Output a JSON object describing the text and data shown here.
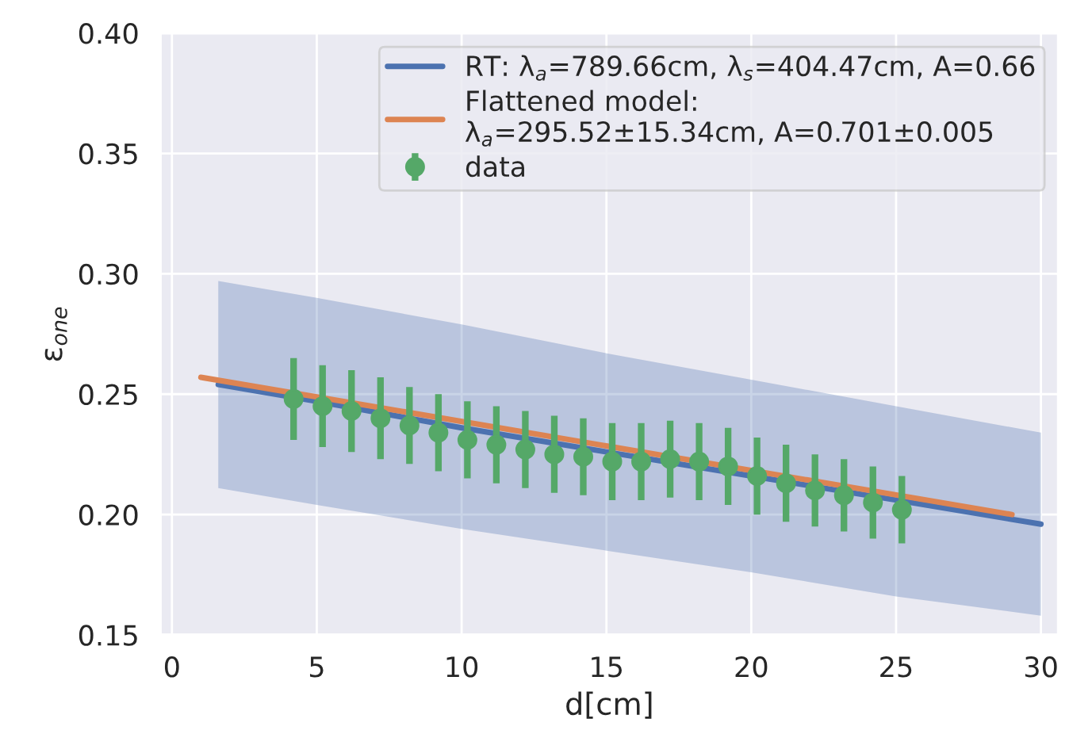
{
  "chart_data": {
    "type": "line",
    "xlabel": "d[cm]",
    "ylabel": "ε$_{one}$",
    "xlim": [
      -0.4,
      30.6
    ],
    "ylim": [
      0.15,
      0.4
    ],
    "xticks": [
      0,
      5,
      10,
      15,
      20,
      25,
      30
    ],
    "yticks": [
      {
        "value": 0.15,
        "label": "0.15"
      },
      {
        "value": 0.2,
        "label": "0.20"
      },
      {
        "value": 0.25,
        "label": "0.25"
      },
      {
        "value": 0.3,
        "label": "0.30"
      },
      {
        "value": 0.35,
        "label": "0.35"
      },
      {
        "value": 0.4,
        "label": "0.40"
      }
    ],
    "grid": true,
    "legend": "top right",
    "series": [
      {
        "name": "RT: λ$_{a}$=789.66cm, λ$_{s}$=404.47cm, A=0.66",
        "type": "line",
        "color": "#4c72b0",
        "x": [
          1.6,
          5,
          10,
          15,
          20,
          25,
          30
        ],
        "values": [
          0.254,
          0.247,
          0.236,
          0.226,
          0.216,
          0.206,
          0.196
        ],
        "lower": [
          0.211,
          0.204,
          0.194,
          0.185,
          0.176,
          0.166,
          0.158
        ],
        "upper": [
          0.297,
          0.29,
          0.279,
          0.267,
          0.256,
          0.245,
          0.234
        ]
      },
      {
        "name": "Flattened model:\nλ$_{a}$=295.52±15.34cm, A=0.701±0.005",
        "type": "line",
        "color": "#dd8452",
        "x": [
          1,
          29
        ],
        "values": [
          0.257,
          0.2
        ]
      },
      {
        "name": "data",
        "type": "scatter",
        "color": "#55a868",
        "marker": "circle",
        "x": [
          4.2,
          5.2,
          6.2,
          7.2,
          8.2,
          9.2,
          10.2,
          11.2,
          12.2,
          13.2,
          14.2,
          15.2,
          16.2,
          17.2,
          18.2,
          19.2,
          20.2,
          21.2,
          22.2,
          23.2,
          24.2,
          25.2
        ],
        "values": [
          0.248,
          0.245,
          0.243,
          0.24,
          0.237,
          0.234,
          0.231,
          0.229,
          0.227,
          0.225,
          0.224,
          0.222,
          0.222,
          0.223,
          0.222,
          0.22,
          0.216,
          0.213,
          0.21,
          0.208,
          0.205,
          0.202
        ],
        "errors": [
          0.017,
          0.017,
          0.017,
          0.017,
          0.016,
          0.016,
          0.016,
          0.016,
          0.016,
          0.016,
          0.016,
          0.016,
          0.016,
          0.016,
          0.016,
          0.016,
          0.016,
          0.016,
          0.015,
          0.015,
          0.015,
          0.014
        ]
      }
    ]
  }
}
